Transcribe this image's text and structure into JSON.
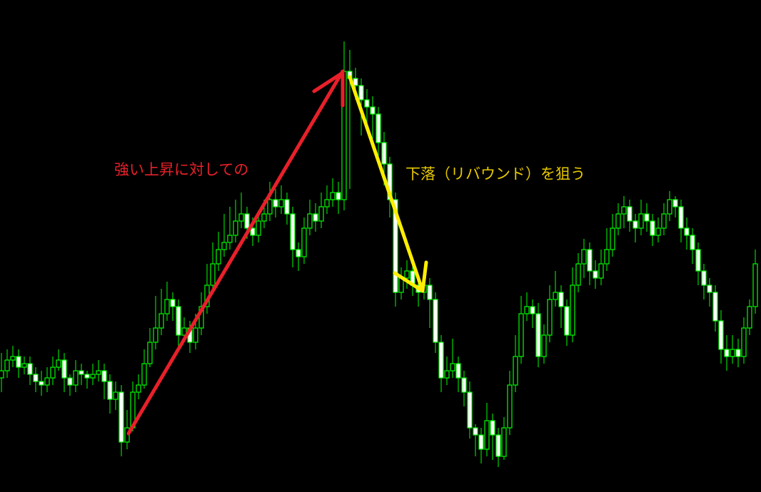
{
  "chart_data": {
    "type": "candlestick",
    "title": "",
    "xlabel": "",
    "ylabel": "",
    "ylim": [
      0,
      690
    ],
    "grid": false,
    "colors": {
      "background": "#000000",
      "wick_outline": "#00ff00",
      "bull_body": "#000000",
      "bear_body": "#ffffff",
      "rise_arrow": "#e8202a",
      "fall_arrow": "#ffee00"
    },
    "ohlc": [
      [
        170,
        205,
        150,
        180
      ],
      [
        180,
        210,
        170,
        195
      ],
      [
        195,
        215,
        185,
        200
      ],
      [
        200,
        210,
        170,
        185
      ],
      [
        185,
        200,
        175,
        190
      ],
      [
        190,
        200,
        160,
        175
      ],
      [
        175,
        185,
        150,
        165
      ],
      [
        165,
        180,
        145,
        160
      ],
      [
        160,
        185,
        150,
        170
      ],
      [
        170,
        200,
        160,
        185
      ],
      [
        185,
        210,
        180,
        195
      ],
      [
        195,
        205,
        150,
        170
      ],
      [
        170,
        175,
        145,
        160
      ],
      [
        160,
        195,
        150,
        180
      ],
      [
        180,
        190,
        160,
        175
      ],
      [
        175,
        180,
        155,
        170
      ],
      [
        170,
        190,
        160,
        175
      ],
      [
        175,
        195,
        165,
        180
      ],
      [
        180,
        190,
        140,
        165
      ],
      [
        165,
        175,
        120,
        140
      ],
      [
        140,
        165,
        125,
        150
      ],
      [
        150,
        160,
        60,
        80
      ],
      [
        80,
        125,
        70,
        100
      ],
      [
        100,
        165,
        95,
        150
      ],
      [
        150,
        175,
        140,
        160
      ],
      [
        160,
        210,
        155,
        190
      ],
      [
        190,
        240,
        185,
        220
      ],
      [
        220,
        285,
        210,
        240
      ],
      [
        240,
        295,
        230,
        260
      ],
      [
        260,
        305,
        250,
        280
      ],
      [
        280,
        290,
        250,
        270
      ],
      [
        270,
        280,
        215,
        230
      ],
      [
        230,
        255,
        220,
        240
      ],
      [
        240,
        250,
        205,
        220
      ],
      [
        220,
        260,
        210,
        240
      ],
      [
        240,
        290,
        230,
        270
      ],
      [
        270,
        330,
        260,
        300
      ],
      [
        300,
        360,
        290,
        330
      ],
      [
        330,
        375,
        320,
        350
      ],
      [
        350,
        400,
        340,
        360
      ],
      [
        360,
        410,
        350,
        370
      ],
      [
        370,
        420,
        360,
        390
      ],
      [
        390,
        430,
        380,
        400
      ],
      [
        400,
        410,
        365,
        380
      ],
      [
        380,
        395,
        355,
        370
      ],
      [
        370,
        405,
        360,
        390
      ],
      [
        390,
        420,
        380,
        400
      ],
      [
        400,
        445,
        390,
        420
      ],
      [
        420,
        435,
        395,
        410
      ],
      [
        410,
        440,
        400,
        420
      ],
      [
        420,
        430,
        385,
        400
      ],
      [
        400,
        410,
        325,
        350
      ],
      [
        350,
        360,
        320,
        340
      ],
      [
        340,
        395,
        330,
        380
      ],
      [
        380,
        420,
        370,
        400
      ],
      [
        400,
        415,
        375,
        390
      ],
      [
        390,
        430,
        380,
        410
      ],
      [
        410,
        440,
        400,
        420
      ],
      [
        420,
        450,
        410,
        430
      ],
      [
        430,
        445,
        400,
        420
      ],
      [
        420,
        642,
        405,
        600
      ],
      [
        600,
        630,
        435,
        590
      ],
      [
        590,
        605,
        560,
        580
      ],
      [
        580,
        590,
        510,
        560
      ],
      [
        560,
        575,
        520,
        550
      ],
      [
        550,
        565,
        505,
        540
      ],
      [
        540,
        550,
        470,
        500
      ],
      [
        500,
        515,
        440,
        470
      ],
      [
        470,
        480,
        395,
        420
      ],
      [
        420,
        430,
        270,
        290
      ],
      [
        290,
        325,
        280,
        310
      ],
      [
        310,
        335,
        295,
        320
      ],
      [
        320,
        335,
        285,
        300
      ],
      [
        300,
        310,
        270,
        290
      ],
      [
        290,
        320,
        280,
        300
      ],
      [
        300,
        310,
        240,
        280
      ],
      [
        280,
        290,
        205,
        220
      ],
      [
        220,
        230,
        150,
        170
      ],
      [
        170,
        200,
        160,
        180
      ],
      [
        180,
        225,
        170,
        190
      ],
      [
        190,
        200,
        150,
        170
      ],
      [
        170,
        180,
        130,
        150
      ],
      [
        150,
        165,
        85,
        100
      ],
      [
        100,
        105,
        60,
        90
      ],
      [
        90,
        100,
        50,
        70
      ],
      [
        70,
        135,
        60,
        110
      ],
      [
        110,
        120,
        55,
        90
      ],
      [
        90,
        100,
        45,
        60
      ],
      [
        60,
        115,
        55,
        100
      ],
      [
        100,
        180,
        90,
        160
      ],
      [
        160,
        230,
        150,
        200
      ],
      [
        200,
        285,
        190,
        260
      ],
      [
        260,
        290,
        250,
        270
      ],
      [
        270,
        280,
        240,
        260
      ],
      [
        260,
        275,
        185,
        200
      ],
      [
        200,
        245,
        190,
        230
      ],
      [
        230,
        300,
        220,
        280
      ],
      [
        280,
        320,
        270,
        290
      ],
      [
        290,
        300,
        240,
        270
      ],
      [
        270,
        280,
        215,
        230
      ],
      [
        230,
        325,
        220,
        300
      ],
      [
        300,
        345,
        290,
        330
      ],
      [
        330,
        365,
        310,
        350
      ],
      [
        350,
        360,
        300,
        320
      ],
      [
        320,
        335,
        295,
        310
      ],
      [
        310,
        350,
        300,
        330
      ],
      [
        330,
        380,
        320,
        350
      ],
      [
        350,
        400,
        340,
        380
      ],
      [
        380,
        415,
        370,
        400
      ],
      [
        400,
        425,
        380,
        410
      ],
      [
        410,
        420,
        375,
        390
      ],
      [
        390,
        400,
        360,
        380
      ],
      [
        380,
        420,
        370,
        400
      ],
      [
        400,
        415,
        375,
        390
      ],
      [
        390,
        400,
        355,
        370
      ],
      [
        370,
        395,
        360,
        380
      ],
      [
        380,
        415,
        370,
        400
      ],
      [
        400,
        432,
        390,
        420
      ],
      [
        420,
        425,
        395,
        410
      ],
      [
        410,
        420,
        360,
        380
      ],
      [
        380,
        395,
        350,
        370
      ],
      [
        370,
        380,
        330,
        350
      ],
      [
        350,
        360,
        300,
        320
      ],
      [
        320,
        330,
        280,
        300
      ],
      [
        300,
        310,
        270,
        290
      ],
      [
        290,
        300,
        235,
        250
      ],
      [
        250,
        265,
        190,
        210
      ],
      [
        210,
        230,
        180,
        200
      ],
      [
        200,
        230,
        190,
        210
      ],
      [
        210,
        225,
        185,
        200
      ],
      [
        200,
        255,
        190,
        240
      ],
      [
        240,
        280,
        230,
        270
      ],
      [
        270,
        350,
        260,
        330
      ]
    ],
    "annotations": [
      {
        "type": "arrow",
        "color": "red",
        "text": "強い上昇に対しての"
      },
      {
        "type": "arrow",
        "color": "yellow",
        "text": "下落（リバウンド）を狙う"
      }
    ]
  }
}
